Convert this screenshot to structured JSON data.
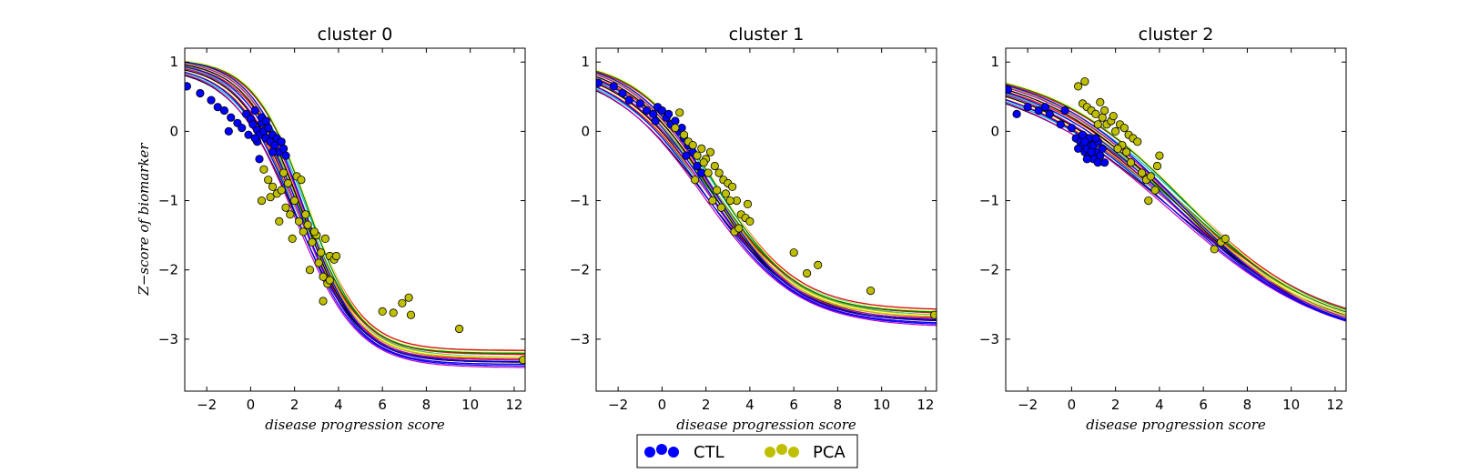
{
  "chart_data": [
    {
      "type": "scatter",
      "title": "cluster 0",
      "xlabel": "disease progression score",
      "ylabel": "Z−score of biomarker",
      "xlim": [
        -3,
        12.5
      ],
      "ylim": [
        -3.75,
        1.2
      ],
      "xticks": [
        -2,
        0,
        2,
        4,
        6,
        8,
        10,
        12
      ],
      "yticks": [
        1,
        0,
        -1,
        -2,
        -3
      ],
      "curve": {
        "top": 1.0,
        "bottom": -3.28,
        "center": 2.3,
        "slope": 0.75
      },
      "series": [
        {
          "name": "CTL",
          "color": "#0000ff",
          "points": [
            [
              -2.9,
              0.65
            ],
            [
              -2.3,
              0.55
            ],
            [
              -1.8,
              0.45
            ],
            [
              -1.5,
              0.35
            ],
            [
              -1.2,
              0.3
            ],
            [
              -0.9,
              0.2
            ],
            [
              -0.6,
              0.12
            ],
            [
              -0.4,
              0.05
            ],
            [
              -0.2,
              0.25
            ],
            [
              0.0,
              0.18
            ],
            [
              0.1,
              0.1
            ],
            [
              0.2,
              0.3
            ],
            [
              0.3,
              0.02
            ],
            [
              0.4,
              -0.05
            ],
            [
              0.5,
              0.12
            ],
            [
              0.6,
              0.0
            ],
            [
              0.7,
              -0.1
            ],
            [
              0.8,
              0.05
            ],
            [
              0.9,
              -0.15
            ],
            [
              1.0,
              -0.05
            ],
            [
              1.1,
              -0.2
            ],
            [
              1.2,
              -0.1
            ],
            [
              1.3,
              -0.3
            ],
            [
              1.4,
              -0.15
            ],
            [
              1.5,
              -0.25
            ],
            [
              0.5,
              0.2
            ],
            [
              0.7,
              0.15
            ],
            [
              0.3,
              -0.15
            ],
            [
              1.0,
              -0.3
            ],
            [
              0.2,
              -0.1
            ],
            [
              -0.1,
              -0.05
            ],
            [
              -1.0,
              0.0
            ],
            [
              0.4,
              -0.4
            ],
            [
              1.6,
              -0.35
            ]
          ]
        },
        {
          "name": "PCA",
          "color": "#bfbf00",
          "points": [
            [
              0.6,
              -0.55
            ],
            [
              0.8,
              -0.7
            ],
            [
              1.0,
              -0.8
            ],
            [
              1.2,
              -0.9
            ],
            [
              1.4,
              -0.85
            ],
            [
              1.6,
              -1.1
            ],
            [
              1.8,
              -1.2
            ],
            [
              2.0,
              -1.0
            ],
            [
              2.2,
              -1.3
            ],
            [
              2.4,
              -1.45
            ],
            [
              2.6,
              -1.35
            ],
            [
              2.8,
              -1.6
            ],
            [
              3.0,
              -1.5
            ],
            [
              3.2,
              -1.75
            ],
            [
              3.4,
              -1.55
            ],
            [
              3.6,
              -1.8
            ],
            [
              3.8,
              -1.85
            ],
            [
              3.9,
              -1.8
            ],
            [
              1.3,
              -1.3
            ],
            [
              1.5,
              -0.6
            ],
            [
              1.7,
              -0.75
            ],
            [
              2.1,
              -0.65
            ],
            [
              2.3,
              -0.7
            ],
            [
              2.5,
              -1.2
            ],
            [
              2.7,
              -2.0
            ],
            [
              3.1,
              -1.9
            ],
            [
              3.3,
              -2.1
            ],
            [
              3.5,
              -2.2
            ],
            [
              3.6,
              -2.15
            ],
            [
              3.3,
              -2.45
            ],
            [
              0.9,
              -0.95
            ],
            [
              0.5,
              -1.0
            ],
            [
              1.9,
              -1.55
            ],
            [
              2.9,
              -1.45
            ],
            [
              6.0,
              -2.6
            ],
            [
              6.5,
              -2.62
            ],
            [
              6.9,
              -2.48
            ],
            [
              7.2,
              -2.4
            ],
            [
              7.3,
              -2.65
            ],
            [
              9.5,
              -2.85
            ],
            [
              12.4,
              -3.3
            ]
          ]
        }
      ]
    },
    {
      "type": "scatter",
      "title": "cluster 1",
      "xlabel": "disease progression score",
      "ylabel": "",
      "xlim": [
        -3,
        12.5
      ],
      "ylim": [
        -3.75,
        1.2
      ],
      "xticks": [
        -2,
        0,
        2,
        4,
        6,
        8,
        10,
        12
      ],
      "yticks": [
        1,
        0,
        -1,
        -2,
        -3
      ],
      "curve": {
        "top": 1.0,
        "bottom": -2.7,
        "center": 2.2,
        "slope": 0.5
      },
      "series": [
        {
          "name": "CTL",
          "color": "#0000ff",
          "points": [
            [
              -2.9,
              0.7
            ],
            [
              -2.2,
              0.65
            ],
            [
              -1.8,
              0.55
            ],
            [
              -1.5,
              0.45
            ],
            [
              -1.0,
              0.4
            ],
            [
              -0.7,
              0.3
            ],
            [
              -0.4,
              0.25
            ],
            [
              -0.2,
              0.35
            ],
            [
              0.0,
              0.3
            ],
            [
              0.2,
              0.2
            ],
            [
              0.4,
              0.1
            ],
            [
              0.6,
              0.15
            ],
            [
              0.8,
              0.0
            ],
            [
              1.0,
              -0.1
            ],
            [
              1.2,
              -0.2
            ],
            [
              1.4,
              -0.3
            ],
            [
              1.6,
              -0.5
            ],
            [
              1.8,
              -0.6
            ],
            [
              0.3,
              0.25
            ],
            [
              -0.3,
              0.15
            ],
            [
              0.9,
              0.05
            ],
            [
              1.1,
              -0.35
            ]
          ]
        },
        {
          "name": "PCA",
          "color": "#bfbf00",
          "points": [
            [
              0.6,
              0.05
            ],
            [
              0.8,
              0.27
            ],
            [
              1.0,
              -0.05
            ],
            [
              1.2,
              -0.15
            ],
            [
              1.4,
              -0.2
            ],
            [
              1.6,
              -0.35
            ],
            [
              1.8,
              -0.25
            ],
            [
              2.0,
              -0.4
            ],
            [
              2.2,
              -0.3
            ],
            [
              2.4,
              -0.5
            ],
            [
              2.6,
              -0.6
            ],
            [
              2.8,
              -0.7
            ],
            [
              3.0,
              -0.75
            ],
            [
              3.2,
              -0.8
            ],
            [
              3.4,
              -1.0
            ],
            [
              3.6,
              -1.2
            ],
            [
              3.8,
              -1.25
            ],
            [
              4.0,
              -1.3
            ],
            [
              2.3,
              -1.0
            ],
            [
              2.5,
              -0.85
            ],
            [
              2.7,
              -1.1
            ],
            [
              3.1,
              -1.0
            ],
            [
              3.3,
              -1.45
            ],
            [
              3.5,
              -1.4
            ],
            [
              3.9,
              -1.05
            ],
            [
              2.1,
              -0.6
            ],
            [
              1.9,
              -0.45
            ],
            [
              2.9,
              -0.9
            ],
            [
              1.5,
              -0.7
            ],
            [
              6.0,
              -1.75
            ],
            [
              6.6,
              -2.05
            ],
            [
              7.1,
              -1.93
            ],
            [
              9.5,
              -2.3
            ],
            [
              12.4,
              -2.65
            ]
          ]
        }
      ]
    },
    {
      "type": "scatter",
      "title": "cluster 2",
      "xlabel": "disease progression score",
      "ylabel": "",
      "xlim": [
        -3,
        12.5
      ],
      "ylim": [
        -3.75,
        1.2
      ],
      "xticks": [
        -2,
        0,
        2,
        4,
        6,
        8,
        10,
        12
      ],
      "yticks": [
        1,
        0,
        -1,
        -2,
        -3
      ],
      "curve": {
        "top": 0.9,
        "bottom": -3.0,
        "center": 4.8,
        "slope": 0.3
      },
      "series": [
        {
          "name": "CTL",
          "color": "#0000ff",
          "points": [
            [
              -2.9,
              0.6
            ],
            [
              -2.0,
              0.35
            ],
            [
              -1.5,
              0.3
            ],
            [
              -1.0,
              0.25
            ],
            [
              -0.5,
              0.1
            ],
            [
              0.0,
              0.05
            ],
            [
              0.2,
              -0.1
            ],
            [
              0.4,
              -0.15
            ],
            [
              0.5,
              -0.2
            ],
            [
              0.6,
              -0.3
            ],
            [
              0.7,
              -0.25
            ],
            [
              0.8,
              -0.35
            ],
            [
              0.9,
              -0.2
            ],
            [
              1.0,
              -0.4
            ],
            [
              1.1,
              -0.3
            ],
            [
              1.2,
              -0.45
            ],
            [
              1.3,
              -0.35
            ],
            [
              1.4,
              -0.25
            ],
            [
              1.5,
              -0.45
            ],
            [
              0.5,
              -0.05
            ],
            [
              0.3,
              -0.25
            ],
            [
              0.8,
              -0.1
            ],
            [
              1.0,
              -0.2
            ],
            [
              1.2,
              -0.15
            ],
            [
              0.7,
              -0.4
            ],
            [
              -1.2,
              0.35
            ],
            [
              -2.5,
              0.25
            ],
            [
              0.9,
              -0.3
            ],
            [
              1.1,
              -0.1
            ],
            [
              0.6,
              -0.15
            ],
            [
              -0.3,
              0.3
            ]
          ]
        },
        {
          "name": "PCA",
          "color": "#bfbf00",
          "points": [
            [
              0.3,
              0.65
            ],
            [
              0.6,
              0.72
            ],
            [
              0.5,
              0.4
            ],
            [
              0.7,
              0.35
            ],
            [
              0.9,
              0.3
            ],
            [
              1.1,
              0.25
            ],
            [
              1.3,
              0.42
            ],
            [
              1.4,
              0.2
            ],
            [
              1.6,
              0.1
            ],
            [
              1.8,
              0.15
            ],
            [
              2.0,
              0.0
            ],
            [
              2.2,
              0.1
            ],
            [
              2.4,
              0.05
            ],
            [
              2.6,
              -0.05
            ],
            [
              2.8,
              -0.1
            ],
            [
              3.0,
              -0.15
            ],
            [
              1.5,
              0.3
            ],
            [
              1.9,
              0.22
            ],
            [
              2.3,
              -0.2
            ],
            [
              2.5,
              -0.3
            ],
            [
              2.7,
              -0.45
            ],
            [
              3.2,
              -0.6
            ],
            [
              3.4,
              -0.7
            ],
            [
              3.6,
              -0.65
            ],
            [
              3.8,
              -0.85
            ],
            [
              3.9,
              -0.5
            ],
            [
              4.0,
              -0.35
            ],
            [
              3.5,
              -1.0
            ],
            [
              2.1,
              -0.25
            ],
            [
              1.2,
              0.1
            ],
            [
              6.5,
              -1.7
            ],
            [
              6.8,
              -1.6
            ],
            [
              7.0,
              -1.55
            ]
          ]
        }
      ]
    }
  ],
  "legend": {
    "placement": "bottom-center",
    "entries": [
      {
        "name": "CTL",
        "color": "#0000ff"
      },
      {
        "name": "PCA",
        "color": "#bfbf00"
      }
    ]
  },
  "curve_colors": [
    "#000000",
    "#00bfbf",
    "#bf00bf",
    "#bfbf00",
    "#ff0000",
    "#0000ff",
    "#008000",
    "#ffff80"
  ]
}
